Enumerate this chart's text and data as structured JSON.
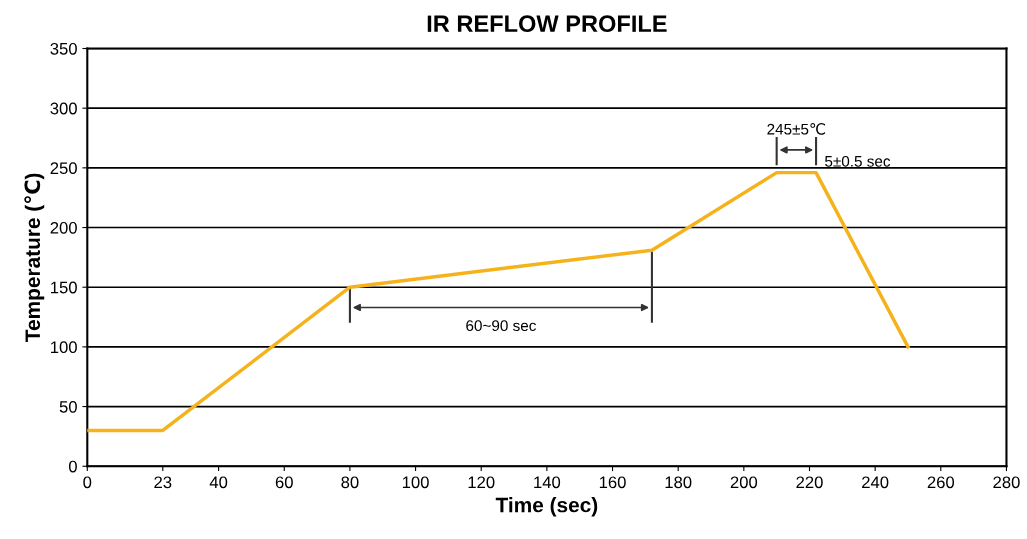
{
  "chart_data": {
    "type": "line",
    "title": "IR REFLOW PROFILE",
    "xlabel": "Time (sec)",
    "ylabel": "Temperature (℃)",
    "x": [
      0,
      23,
      80,
      172,
      210,
      222,
      250
    ],
    "series": [
      {
        "color": "#f5b21a",
        "values": [
          30,
          30,
          150,
          181,
          246,
          246,
          100
        ]
      }
    ],
    "xlim": [
      0,
      280
    ],
    "xticks": [
      0,
      23,
      40,
      60,
      80,
      100,
      120,
      140,
      160,
      180,
      200,
      220,
      240,
      260,
      280
    ],
    "ylim": [
      0,
      350
    ],
    "yticks": [
      0,
      50,
      100,
      150,
      200,
      250,
      300,
      350
    ],
    "grid": "y",
    "marker": "none",
    "line_style": "solid",
    "legend": false,
    "annotations": [
      "60~90 sec",
      "245±5℃",
      "5±0.5 sec"
    ]
  }
}
